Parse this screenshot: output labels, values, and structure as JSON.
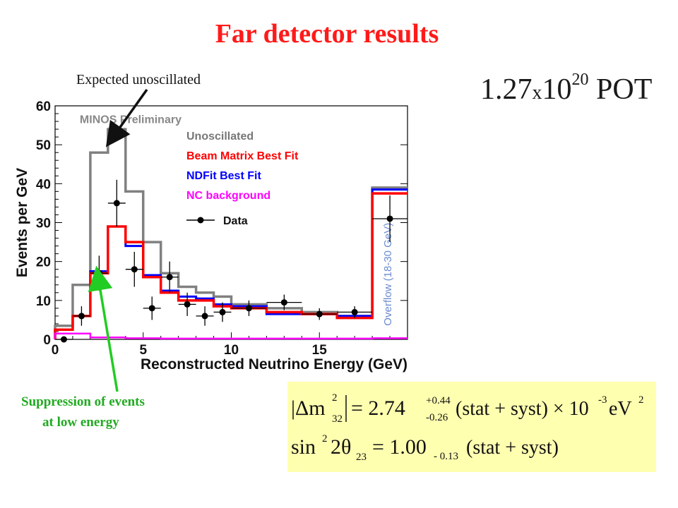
{
  "slide": {
    "title": "Far detector results",
    "pot_mantissa": "1.27",
    "pot_x": "x",
    "pot_base": "10",
    "pot_exp": "20",
    "pot_unit": " POT",
    "annotation_expected": "Expected unoscillated",
    "annotation_suppression_line1": "Suppression of events",
    "annotation_suppression_line2": "at low energy",
    "annotation_arrow_colors": {
      "expected": "#111111",
      "suppression": "#22cc22"
    }
  },
  "formula": {
    "line1_lhs": "|Δm",
    "line1_lhs_sub": "32",
    "line1_lhs_sup": "2",
    "line1_eq": "= 2.74",
    "line1_err_up": "+0.44",
    "line1_err_down": "-0.26",
    "line1_tail": "(stat + syst) × 10",
    "line1_exp": "-3",
    "line1_unit": "eV",
    "line1_unit_sup": "2",
    "line2_lhs": "sin",
    "line2_sup": "2",
    "line2_theta": "2θ",
    "line2_sub": "23",
    "line2_eq": "= 1.00",
    "line2_err": "- 0.13",
    "line2_tail": "(stat + syst)"
  },
  "chart_data": {
    "type": "line",
    "title": "",
    "watermark": "MINOS Preliminary",
    "xlabel": "Reconstructed Neutrino Energy (GeV)",
    "ylabel": "Events per GeV",
    "xlim": [
      0,
      20
    ],
    "ylim": [
      0,
      60
    ],
    "xticks": [
      0,
      5,
      10,
      15
    ],
    "yticks": [
      0,
      10,
      20,
      30,
      40,
      50,
      60
    ],
    "overflow_label": "Overflow (18-30 GeV)",
    "bin_edges": [
      0,
      1,
      2,
      3,
      4,
      5,
      6,
      7,
      8,
      9,
      10,
      12,
      14,
      16,
      18,
      20
    ],
    "series": [
      {
        "name": "Unoscillated",
        "color": "#808080",
        "values": [
          3.5,
          14,
          48,
          54,
          38,
          25,
          17,
          13.5,
          12,
          11,
          9,
          8,
          7,
          6,
          39
        ]
      },
      {
        "name": "Beam Matrix Best Fit",
        "color": "#ff0000",
        "values": [
          2.5,
          6,
          17,
          29,
          25,
          16,
          12,
          10,
          10,
          8.5,
          8,
          7,
          6.5,
          5.5,
          37.5
        ]
      },
      {
        "name": "NDFit Best Fit",
        "color": "#0000ff",
        "values": [
          2.5,
          6,
          17.5,
          29,
          24,
          16.5,
          12.5,
          11,
          10.5,
          9,
          8.5,
          6.5,
          6.5,
          6,
          38.5
        ]
      },
      {
        "name": "NC background",
        "color": "#ff00ff",
        "values": [
          1.5,
          1.5,
          0.5,
          0.5,
          0.3,
          0.3,
          0.2,
          0.2,
          0.2,
          0.2,
          0.2,
          0.2,
          0.2,
          0.2,
          0.3
        ]
      }
    ],
    "data_points": {
      "name": "Data",
      "color": "#000000",
      "points": [
        {
          "x": 0.5,
          "y": 0,
          "xerr": 0.5,
          "yerr": 0
        },
        {
          "x": 1.5,
          "y": 6,
          "xerr": 0.5,
          "yerr": 2.5
        },
        {
          "x": 2.5,
          "y": 17,
          "xerr": 0.5,
          "yerr": 4.5
        },
        {
          "x": 3.5,
          "y": 35,
          "xerr": 0.5,
          "yerr": 6
        },
        {
          "x": 4.5,
          "y": 18,
          "xerr": 0.5,
          "yerr": 4.5
        },
        {
          "x": 5.5,
          "y": 8,
          "xerr": 0.5,
          "yerr": 3
        },
        {
          "x": 6.5,
          "y": 16,
          "xerr": 0.5,
          "yerr": 4
        },
        {
          "x": 7.5,
          "y": 9,
          "xerr": 0.5,
          "yerr": 3
        },
        {
          "x": 8.5,
          "y": 6,
          "xerr": 0.5,
          "yerr": 2.5
        },
        {
          "x": 9.5,
          "y": 7,
          "xerr": 0.5,
          "yerr": 2.5
        },
        {
          "x": 11,
          "y": 8,
          "xerr": 1,
          "yerr": 2
        },
        {
          "x": 13,
          "y": 9.5,
          "xerr": 1,
          "yerr": 2
        },
        {
          "x": 15,
          "y": 6.5,
          "xerr": 1,
          "yerr": 1.5
        },
        {
          "x": 17,
          "y": 7,
          "xerr": 1,
          "yerr": 1.5
        },
        {
          "x": 19,
          "y": 31,
          "xerr": 1,
          "yerr": 6
        }
      ]
    },
    "legend_position": "top-right",
    "grid": false
  }
}
